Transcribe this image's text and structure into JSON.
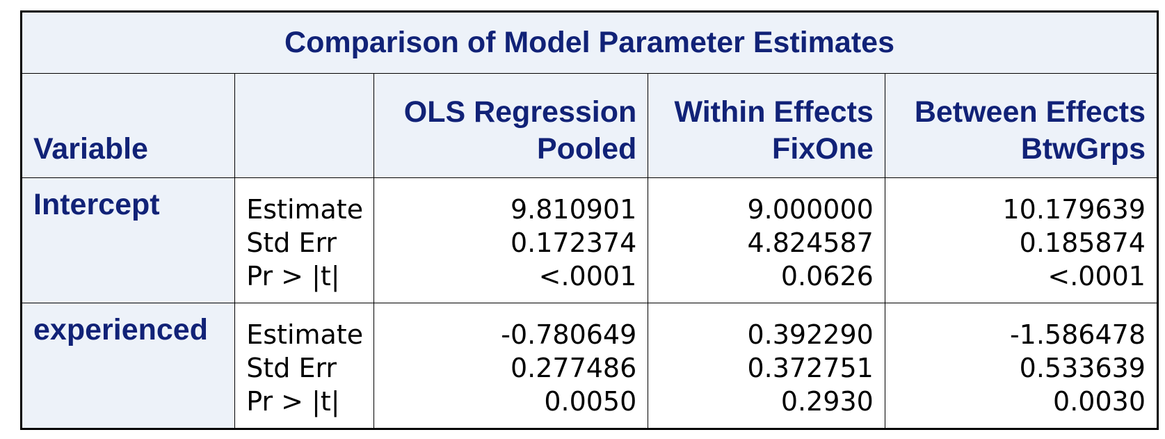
{
  "table": {
    "title": "Comparison of Model Parameter Estimates",
    "headers": {
      "variable": "Variable",
      "stat": "",
      "columns": [
        {
          "line1": "OLS Regression",
          "line2": "Pooled"
        },
        {
          "line1": "Within Effects",
          "line2": "FixOne"
        },
        {
          "line1": "Between Effects",
          "line2": "BtwGrps"
        }
      ]
    },
    "rows": [
      {
        "variable": "Intercept",
        "stat_labels": [
          "Estimate",
          "Std Err",
          "Pr > |t|"
        ],
        "values": [
          [
            "9.810901",
            "0.172374",
            "<.0001"
          ],
          [
            "9.000000",
            "4.824587",
            "0.0626"
          ],
          [
            "10.179639",
            "0.185874",
            "<.0001"
          ]
        ]
      },
      {
        "variable": "experienced",
        "stat_labels": [
          "Estimate",
          "Std Err",
          "Pr > |t|"
        ],
        "values": [
          [
            "-0.780649",
            "0.277486",
            "0.0050"
          ],
          [
            "0.392290",
            "0.372751",
            "0.2930"
          ],
          [
            "-1.586478",
            "0.533639",
            "0.0030"
          ]
        ]
      }
    ]
  },
  "colors": {
    "header_bg": "#edf2f9",
    "header_text": "#112277",
    "border": "#000000"
  }
}
